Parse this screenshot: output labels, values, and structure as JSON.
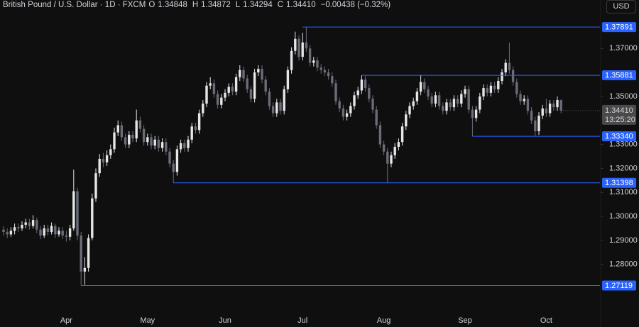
{
  "header": {
    "symbol": "British Pound / U.S. Dollar · 1D · FXCM",
    "ohlc": [
      {
        "key": "O",
        "value": "1.34848"
      },
      {
        "key": "H",
        "value": "1.34872"
      },
      {
        "key": "L",
        "value": "1.34294"
      },
      {
        "key": "C",
        "value": "1.34410"
      }
    ],
    "change": "−0.00438 (−0.32%)",
    "currency": "USD"
  },
  "chart_data": {
    "type": "candlestick",
    "up_color": "#e6e6e6",
    "down_color": "#6a6d78",
    "level_color": "#2962ff",
    "ylim": [
      1.2601,
      1.3902
    ],
    "yticks": [
      {
        "value": 1.37,
        "label": "1.37000"
      },
      {
        "value": 1.35,
        "label": "1.35000"
      },
      {
        "value": 1.33,
        "label": "1.33000"
      },
      {
        "value": 1.32,
        "label": "1.32000"
      },
      {
        "value": 1.31,
        "label": "1.31000"
      },
      {
        "value": 1.3,
        "label": "1.30000"
      },
      {
        "value": 1.29,
        "label": "1.29000"
      },
      {
        "value": 1.28,
        "label": "1.28000"
      }
    ],
    "levels": [
      1.37891,
      1.35881,
      1.3334,
      1.31398,
      1.27119
    ],
    "level_labels": [
      "1.37891",
      "1.35881",
      "1.33340",
      "1.31398",
      "1.27119"
    ],
    "last_price": {
      "value": 1.3441,
      "label": "1.34410"
    },
    "countdown": "13:25:20",
    "categories": [
      null,
      null,
      null,
      null,
      null,
      null,
      null,
      null,
      null,
      null,
      null,
      null,
      null,
      null,
      null,
      null,
      null,
      "Apr",
      null,
      null,
      null,
      null,
      null,
      null,
      null,
      null,
      null,
      null,
      null,
      null,
      null,
      null,
      null,
      null,
      null,
      null,
      null,
      null,
      null,
      "May",
      null,
      null,
      null,
      null,
      null,
      null,
      null,
      null,
      null,
      null,
      null,
      null,
      null,
      null,
      null,
      null,
      null,
      null,
      null,
      null,
      "Jun",
      null,
      null,
      null,
      null,
      null,
      null,
      null,
      null,
      null,
      null,
      null,
      null,
      null,
      null,
      null,
      null,
      null,
      null,
      null,
      null,
      "Jul",
      null,
      null,
      null,
      null,
      null,
      null,
      null,
      null,
      null,
      null,
      null,
      null,
      null,
      null,
      null,
      null,
      null,
      null,
      null,
      null,
      null,
      "Aug",
      null,
      null,
      null,
      null,
      null,
      null,
      null,
      null,
      null,
      null,
      null,
      null,
      null,
      null,
      null,
      null,
      null,
      null,
      null,
      null,
      null,
      "Sep",
      null,
      null,
      null,
      null,
      null,
      null,
      null,
      null,
      null,
      null,
      null,
      null,
      null,
      null,
      null,
      null,
      null,
      null,
      null,
      null,
      null,
      "Oct",
      null,
      null,
      null,
      null
    ],
    "ohlc": [
      [
        1.2945,
        1.296,
        1.292,
        1.2935
      ],
      [
        1.2935,
        1.295,
        1.291,
        1.2925
      ],
      [
        1.2925,
        1.2955,
        1.2915,
        1.294
      ],
      [
        1.294,
        1.297,
        1.2925,
        1.2955
      ],
      [
        1.2955,
        1.297,
        1.2935,
        1.295
      ],
      [
        1.295,
        1.298,
        1.294,
        1.2965
      ],
      [
        1.2965,
        1.299,
        1.295,
        1.2975
      ],
      [
        1.2975,
        1.299,
        1.2945,
        1.296
      ],
      [
        1.296,
        1.3005,
        1.295,
        1.2985
      ],
      [
        1.2985,
        1.2995,
        1.293,
        1.2945
      ],
      [
        1.2945,
        1.296,
        1.2905,
        1.292
      ],
      [
        1.292,
        1.2965,
        1.291,
        1.295
      ],
      [
        1.295,
        1.2965,
        1.292,
        1.2935
      ],
      [
        1.2935,
        1.2975,
        1.2925,
        1.296
      ],
      [
        1.296,
        1.297,
        1.291,
        1.2925
      ],
      [
        1.2925,
        1.2955,
        1.2915,
        1.294
      ],
      [
        1.294,
        1.2955,
        1.2905,
        1.292
      ],
      [
        1.292,
        1.294,
        1.2895,
        1.2915
      ],
      [
        1.2915,
        1.2965,
        1.29,
        1.295
      ],
      [
        1.295,
        1.3195,
        1.294,
        1.3105
      ],
      [
        1.3105,
        1.312,
        1.29,
        1.292
      ],
      [
        1.292,
        1.2935,
        1.2712,
        1.277
      ],
      [
        1.277,
        1.283,
        1.2715,
        1.2785
      ],
      [
        1.2785,
        1.2925,
        1.277,
        1.291
      ],
      [
        1.291,
        1.3095,
        1.29,
        1.3075
      ],
      [
        1.3075,
        1.32,
        1.306,
        1.318
      ],
      [
        1.318,
        1.326,
        1.3165,
        1.324
      ],
      [
        1.324,
        1.3265,
        1.3205,
        1.3225
      ],
      [
        1.3225,
        1.3275,
        1.321,
        1.3255
      ],
      [
        1.3255,
        1.33,
        1.324,
        1.328
      ],
      [
        1.328,
        1.337,
        1.3265,
        1.335
      ],
      [
        1.335,
        1.34,
        1.3335,
        1.338
      ],
      [
        1.338,
        1.3395,
        1.3315,
        1.333
      ],
      [
        1.333,
        1.3345,
        1.3285,
        1.33
      ],
      [
        1.33,
        1.3355,
        1.3285,
        1.334
      ],
      [
        1.334,
        1.3355,
        1.331,
        1.3325
      ],
      [
        1.3325,
        1.3445,
        1.331,
        1.34
      ],
      [
        1.34,
        1.3415,
        1.335,
        1.3365
      ],
      [
        1.3365,
        1.338,
        1.3295,
        1.331
      ],
      [
        1.331,
        1.3345,
        1.3295,
        1.333
      ],
      [
        1.333,
        1.3345,
        1.328,
        1.3295
      ],
      [
        1.3295,
        1.3335,
        1.328,
        1.332
      ],
      [
        1.332,
        1.3335,
        1.327,
        1.3285
      ],
      [
        1.3285,
        1.3325,
        1.327,
        1.331
      ],
      [
        1.331,
        1.3325,
        1.3255,
        1.327
      ],
      [
        1.327,
        1.3285,
        1.3205,
        1.322
      ],
      [
        1.322,
        1.3235,
        1.314,
        1.3185
      ],
      [
        1.3185,
        1.3295,
        1.317,
        1.328
      ],
      [
        1.328,
        1.332,
        1.3265,
        1.3305
      ],
      [
        1.3305,
        1.332,
        1.327,
        1.3285
      ],
      [
        1.3285,
        1.3335,
        1.327,
        1.332
      ],
      [
        1.332,
        1.339,
        1.3305,
        1.3375
      ],
      [
        1.3375,
        1.339,
        1.3345,
        1.336
      ],
      [
        1.336,
        1.3445,
        1.3345,
        1.343
      ],
      [
        1.343,
        1.3485,
        1.3415,
        1.347
      ],
      [
        1.347,
        1.356,
        1.3455,
        1.3545
      ],
      [
        1.3545,
        1.358,
        1.353,
        1.3555
      ],
      [
        1.3555,
        1.357,
        1.3495,
        1.351
      ],
      [
        1.351,
        1.3525,
        1.345,
        1.3465
      ],
      [
        1.3465,
        1.351,
        1.345,
        1.3495
      ],
      [
        1.3495,
        1.353,
        1.348,
        1.3515
      ],
      [
        1.3515,
        1.3555,
        1.35,
        1.354
      ],
      [
        1.354,
        1.3555,
        1.3505,
        1.352
      ],
      [
        1.352,
        1.3595,
        1.3505,
        1.358
      ],
      [
        1.358,
        1.363,
        1.3565,
        1.361
      ],
      [
        1.361,
        1.3625,
        1.356,
        1.3575
      ],
      [
        1.3575,
        1.359,
        1.3515,
        1.353
      ],
      [
        1.353,
        1.3545,
        1.3475,
        1.349
      ],
      [
        1.349,
        1.3615,
        1.3475,
        1.36
      ],
      [
        1.36,
        1.363,
        1.3585,
        1.3615
      ],
      [
        1.3615,
        1.363,
        1.3555,
        1.357
      ],
      [
        1.357,
        1.3585,
        1.3505,
        1.352
      ],
      [
        1.352,
        1.3535,
        1.3445,
        1.346
      ],
      [
        1.346,
        1.3475,
        1.3415,
        1.343
      ],
      [
        1.343,
        1.349,
        1.3415,
        1.3475
      ],
      [
        1.3475,
        1.349,
        1.3425,
        1.344
      ],
      [
        1.344,
        1.3545,
        1.3425,
        1.353
      ],
      [
        1.353,
        1.3625,
        1.3515,
        1.361
      ],
      [
        1.361,
        1.3705,
        1.3595,
        1.369
      ],
      [
        1.369,
        1.377,
        1.3675,
        1.374
      ],
      [
        1.374,
        1.3755,
        1.365,
        1.3665
      ],
      [
        1.3665,
        1.3765,
        1.365,
        1.3725
      ],
      [
        1.3725,
        1.3789,
        1.3685,
        1.37
      ],
      [
        1.37,
        1.3715,
        1.3625,
        1.364
      ],
      [
        1.364,
        1.3665,
        1.3625,
        1.365
      ],
      [
        1.365,
        1.3665,
        1.3605,
        1.362
      ],
      [
        1.362,
        1.3635,
        1.3595,
        1.361
      ],
      [
        1.361,
        1.3625,
        1.3585,
        1.36
      ],
      [
        1.36,
        1.3615,
        1.357,
        1.3585
      ],
      [
        1.3585,
        1.36,
        1.354,
        1.3555
      ],
      [
        1.3555,
        1.357,
        1.3465,
        1.348
      ],
      [
        1.348,
        1.3495,
        1.3435,
        1.345
      ],
      [
        1.345,
        1.3465,
        1.34,
        1.3415
      ],
      [
        1.3415,
        1.3445,
        1.34,
        1.343
      ],
      [
        1.343,
        1.3475,
        1.3415,
        1.346
      ],
      [
        1.346,
        1.352,
        1.3445,
        1.3505
      ],
      [
        1.3505,
        1.354,
        1.349,
        1.3525
      ],
      [
        1.3525,
        1.3588,
        1.351,
        1.357
      ],
      [
        1.357,
        1.3585,
        1.352,
        1.3535
      ],
      [
        1.3535,
        1.355,
        1.3475,
        1.349
      ],
      [
        1.349,
        1.3505,
        1.343,
        1.3445
      ],
      [
        1.3445,
        1.346,
        1.3365,
        1.338
      ],
      [
        1.338,
        1.3395,
        1.3285,
        1.33
      ],
      [
        1.33,
        1.3315,
        1.3255,
        1.327
      ],
      [
        1.327,
        1.3285,
        1.314,
        1.322
      ],
      [
        1.322,
        1.327,
        1.3205,
        1.3255
      ],
      [
        1.3255,
        1.3305,
        1.324,
        1.329
      ],
      [
        1.329,
        1.3325,
        1.3275,
        1.331
      ],
      [
        1.331,
        1.339,
        1.3295,
        1.3375
      ],
      [
        1.3375,
        1.344,
        1.336,
        1.3425
      ],
      [
        1.3425,
        1.3475,
        1.341,
        1.346
      ],
      [
        1.346,
        1.3495,
        1.3445,
        1.348
      ],
      [
        1.348,
        1.3535,
        1.3465,
        1.352
      ],
      [
        1.352,
        1.359,
        1.3505,
        1.356
      ],
      [
        1.356,
        1.3575,
        1.3515,
        1.353
      ],
      [
        1.353,
        1.3545,
        1.3485,
        1.35
      ],
      [
        1.35,
        1.3515,
        1.3455,
        1.347
      ],
      [
        1.347,
        1.352,
        1.3455,
        1.3505
      ],
      [
        1.3505,
        1.352,
        1.3445,
        1.346
      ],
      [
        1.346,
        1.3475,
        1.3425,
        1.344
      ],
      [
        1.344,
        1.349,
        1.3425,
        1.3475
      ],
      [
        1.3475,
        1.349,
        1.344,
        1.3455
      ],
      [
        1.3455,
        1.3505,
        1.344,
        1.349
      ],
      [
        1.349,
        1.3505,
        1.3455,
        1.347
      ],
      [
        1.347,
        1.3525,
        1.3455,
        1.351
      ],
      [
        1.351,
        1.3545,
        1.3495,
        1.353
      ],
      [
        1.353,
        1.3545,
        1.343,
        1.3445
      ],
      [
        1.3445,
        1.346,
        1.3334,
        1.341
      ],
      [
        1.341,
        1.346,
        1.3395,
        1.3445
      ],
      [
        1.3445,
        1.3515,
        1.343,
        1.35
      ],
      [
        1.35,
        1.355,
        1.3485,
        1.3535
      ],
      [
        1.3535,
        1.355,
        1.35,
        1.3515
      ],
      [
        1.3515,
        1.356,
        1.35,
        1.3545
      ],
      [
        1.3545,
        1.356,
        1.3515,
        1.353
      ],
      [
        1.353,
        1.358,
        1.3515,
        1.3565
      ],
      [
        1.3565,
        1.3615,
        1.355,
        1.36
      ],
      [
        1.36,
        1.3655,
        1.3585,
        1.364
      ],
      [
        1.364,
        1.3725,
        1.3595,
        1.361
      ],
      [
        1.361,
        1.3625,
        1.3545,
        1.356
      ],
      [
        1.356,
        1.3575,
        1.3495,
        1.351
      ],
      [
        1.351,
        1.3525,
        1.3465,
        1.348
      ],
      [
        1.348,
        1.3505,
        1.3465,
        1.349
      ],
      [
        1.349,
        1.3505,
        1.3425,
        1.344
      ],
      [
        1.344,
        1.3455,
        1.3385,
        1.34
      ],
      [
        1.34,
        1.3415,
        1.3334,
        1.3355
      ],
      [
        1.3355,
        1.3435,
        1.334,
        1.342
      ],
      [
        1.342,
        1.3465,
        1.3405,
        1.345
      ],
      [
        1.345,
        1.349,
        1.3415,
        1.343
      ],
      [
        1.343,
        1.3485,
        1.3415,
        1.347
      ],
      [
        1.347,
        1.3485,
        1.344,
        1.3455
      ],
      [
        1.3455,
        1.35,
        1.344,
        1.3485
      ],
      [
        1.34848,
        1.34872,
        1.34294,
        1.3441
      ]
    ]
  }
}
